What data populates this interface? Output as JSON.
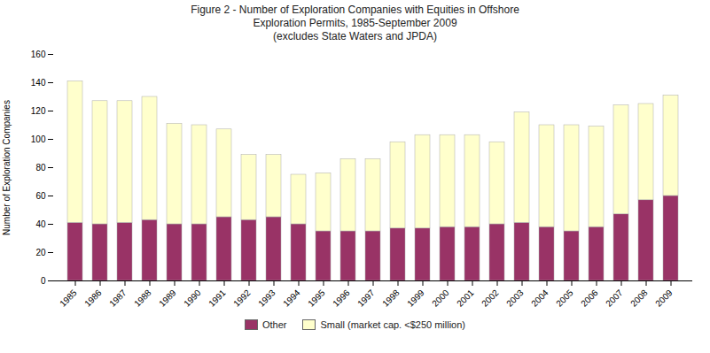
{
  "chart_data": {
    "type": "bar",
    "stacked": true,
    "title": "Figure 2 - Number of Exploration Companies with Equities in Offshore\nExploration Permits, 1985-September 2009\n(excludes State Waters and JPDA)",
    "ylabel": "Number of Exploration Companies",
    "categories": [
      "1985",
      "1986",
      "1987",
      "1988",
      "1989",
      "1990",
      "1991",
      "1992",
      "1993",
      "1994",
      "1995",
      "1996",
      "1997",
      "1998",
      "1999",
      "2000",
      "2001",
      "2002",
      "2003",
      "2004",
      "2005",
      "2006",
      "2007",
      "2008",
      "2009"
    ],
    "series": [
      {
        "name": "Other",
        "color": "#993366",
        "values": [
          41,
          40,
          41,
          43,
          40,
          40,
          45,
          43,
          45,
          40,
          35,
          35,
          35,
          37,
          37,
          38,
          38,
          40,
          41,
          38,
          35,
          38,
          47,
          57,
          60
        ]
      },
      {
        "name": "Small (market cap. <$250 million)",
        "color": "#FFFFCC",
        "values": [
          100,
          87,
          86,
          87,
          71,
          70,
          62,
          46,
          44,
          35,
          41,
          51,
          51,
          61,
          66,
          65,
          65,
          58,
          78,
          72,
          75,
          71,
          77,
          68,
          71
        ]
      }
    ],
    "ylim": [
      0,
      160
    ],
    "yticks": [
      0,
      20,
      40,
      60,
      80,
      100,
      120,
      140,
      160
    ],
    "grid": false,
    "legend": "bottom"
  }
}
